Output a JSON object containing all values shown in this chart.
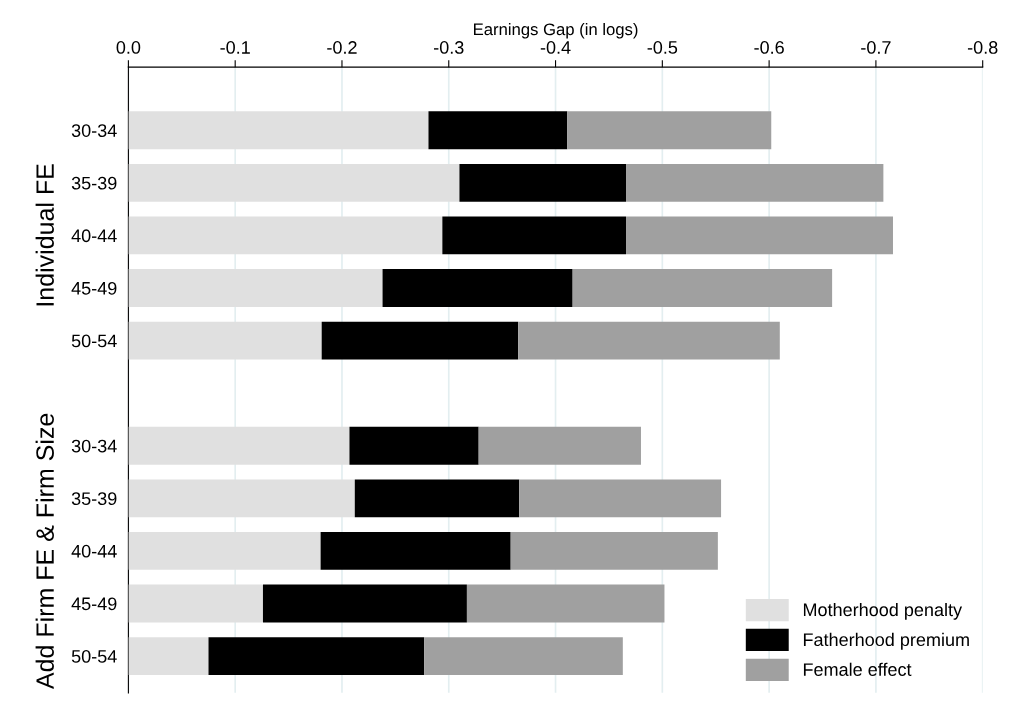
{
  "chart_data": {
    "type": "bar",
    "orientation": "horizontal",
    "stacked": true,
    "xlabel": "Earnings Gap (in logs)",
    "categories": [
      "30-34",
      "35-39",
      "40-44",
      "45-49",
      "50-54",
      null,
      "30-34",
      "35-39",
      "40-44",
      "45-49",
      "50-54"
    ],
    "series": [
      {
        "name": "Motherhood penalty",
        "color": "#e0e0e0",
        "values": [
          -0.281,
          -0.31,
          -0.294,
          -0.238,
          -0.181,
          null,
          -0.207,
          -0.212,
          -0.18,
          -0.126,
          -0.075
        ]
      },
      {
        "name": "Fatherhood premium",
        "color": "#000000",
        "values": [
          -0.13,
          -0.156,
          -0.172,
          -0.178,
          -0.184,
          null,
          -0.121,
          -0.154,
          -0.178,
          -0.191,
          -0.202
        ]
      },
      {
        "name": "Female effect",
        "color": "#a0a0a0",
        "values": [
          -0.191,
          -0.241,
          -0.25,
          -0.243,
          -0.245,
          null,
          -0.152,
          -0.189,
          -0.194,
          -0.185,
          -0.186
        ]
      }
    ],
    "xlim": [
      0,
      -0.8
    ],
    "xticks": [
      {
        "value": 0,
        "label": "0.0"
      },
      -0.1,
      -0.2,
      -0.3,
      -0.4,
      -0.5,
      -0.6,
      -0.7,
      -0.8
    ],
    "grid": "x",
    "legend": "bottom right",
    "annotations": [
      "Individual FE",
      "Add Firm FE & Firm Size"
    ]
  }
}
